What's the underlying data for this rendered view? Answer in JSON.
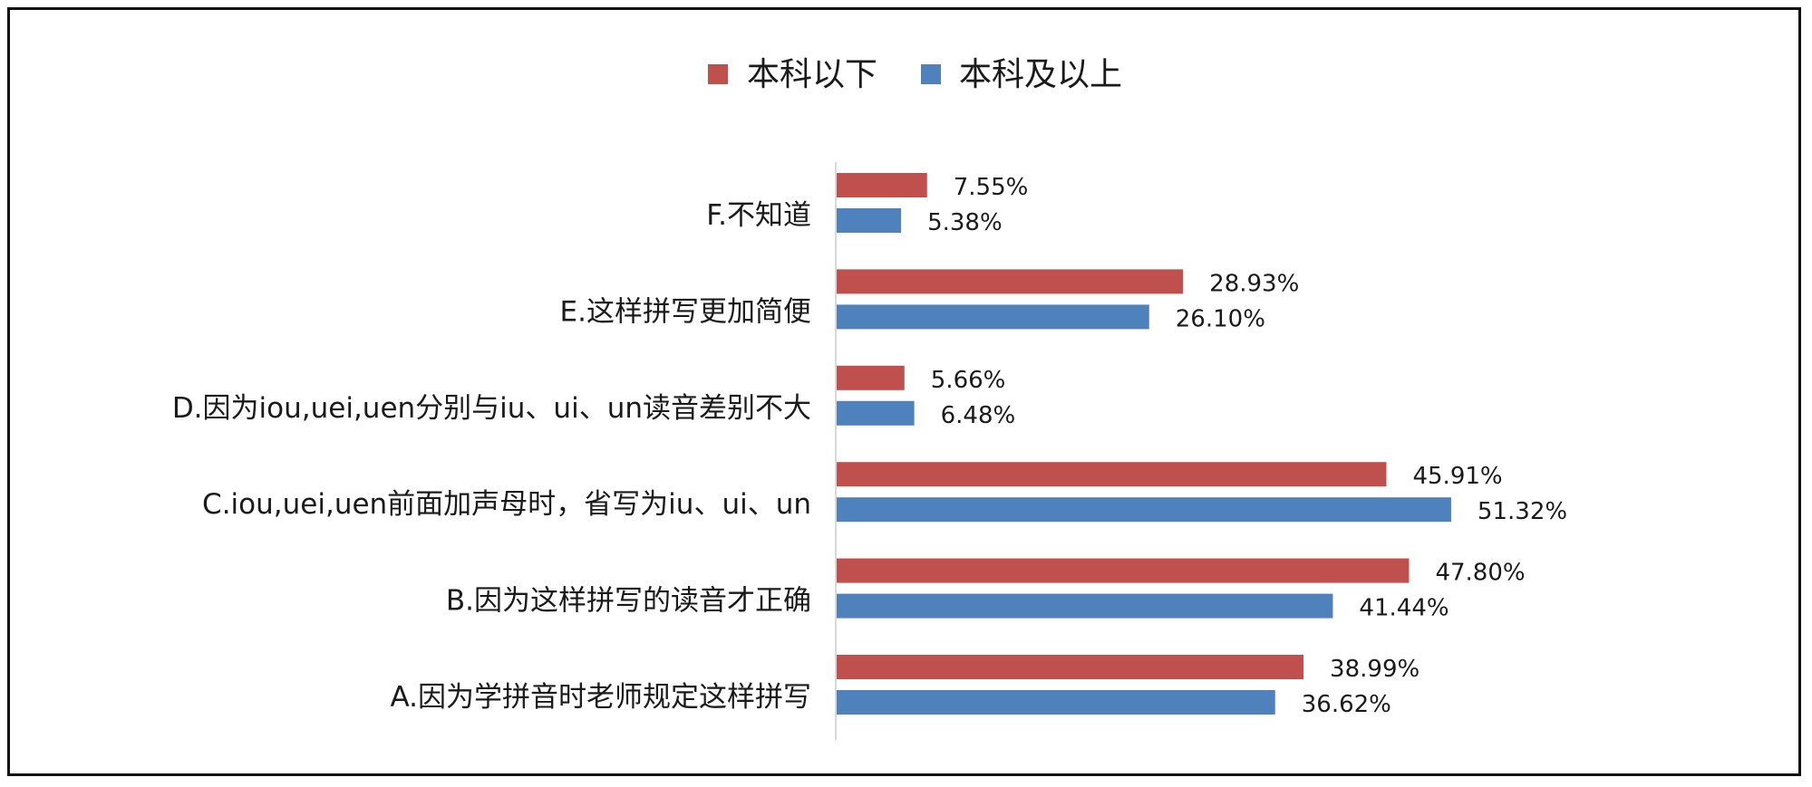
{
  "chart_data": {
    "type": "bar",
    "orientation": "horizontal",
    "categories": [
      "A.因为学拼音时老师规定这样拼写",
      "B.因为这样拼写的读音才正确",
      "C.iou,uei,uen前面加声母时，省写为iu、ui、un",
      "D.因为iou,uei,uen分别与iu、ui、un读音差别不大",
      "E.这样拼写更加简便",
      "F.不知道"
    ],
    "series": [
      {
        "name": "本科以下",
        "color": "#c0504d",
        "values": [
          38.99,
          47.8,
          45.91,
          5.66,
          28.93,
          7.55
        ],
        "labels": [
          "38.99%",
          "47.80%",
          "45.91%",
          "5.66%",
          "28.93%",
          "7.55%"
        ]
      },
      {
        "name": "本科及以上",
        "color": "#4f81bd",
        "values": [
          36.62,
          41.44,
          51.32,
          6.48,
          26.1,
          5.38
        ],
        "labels": [
          "36.62%",
          "41.44%",
          "51.32%",
          "6.48%",
          "26.10%",
          "5.38%"
        ]
      }
    ],
    "xlim": [
      0,
      60
    ],
    "legend_position": "top",
    "grid": false
  }
}
